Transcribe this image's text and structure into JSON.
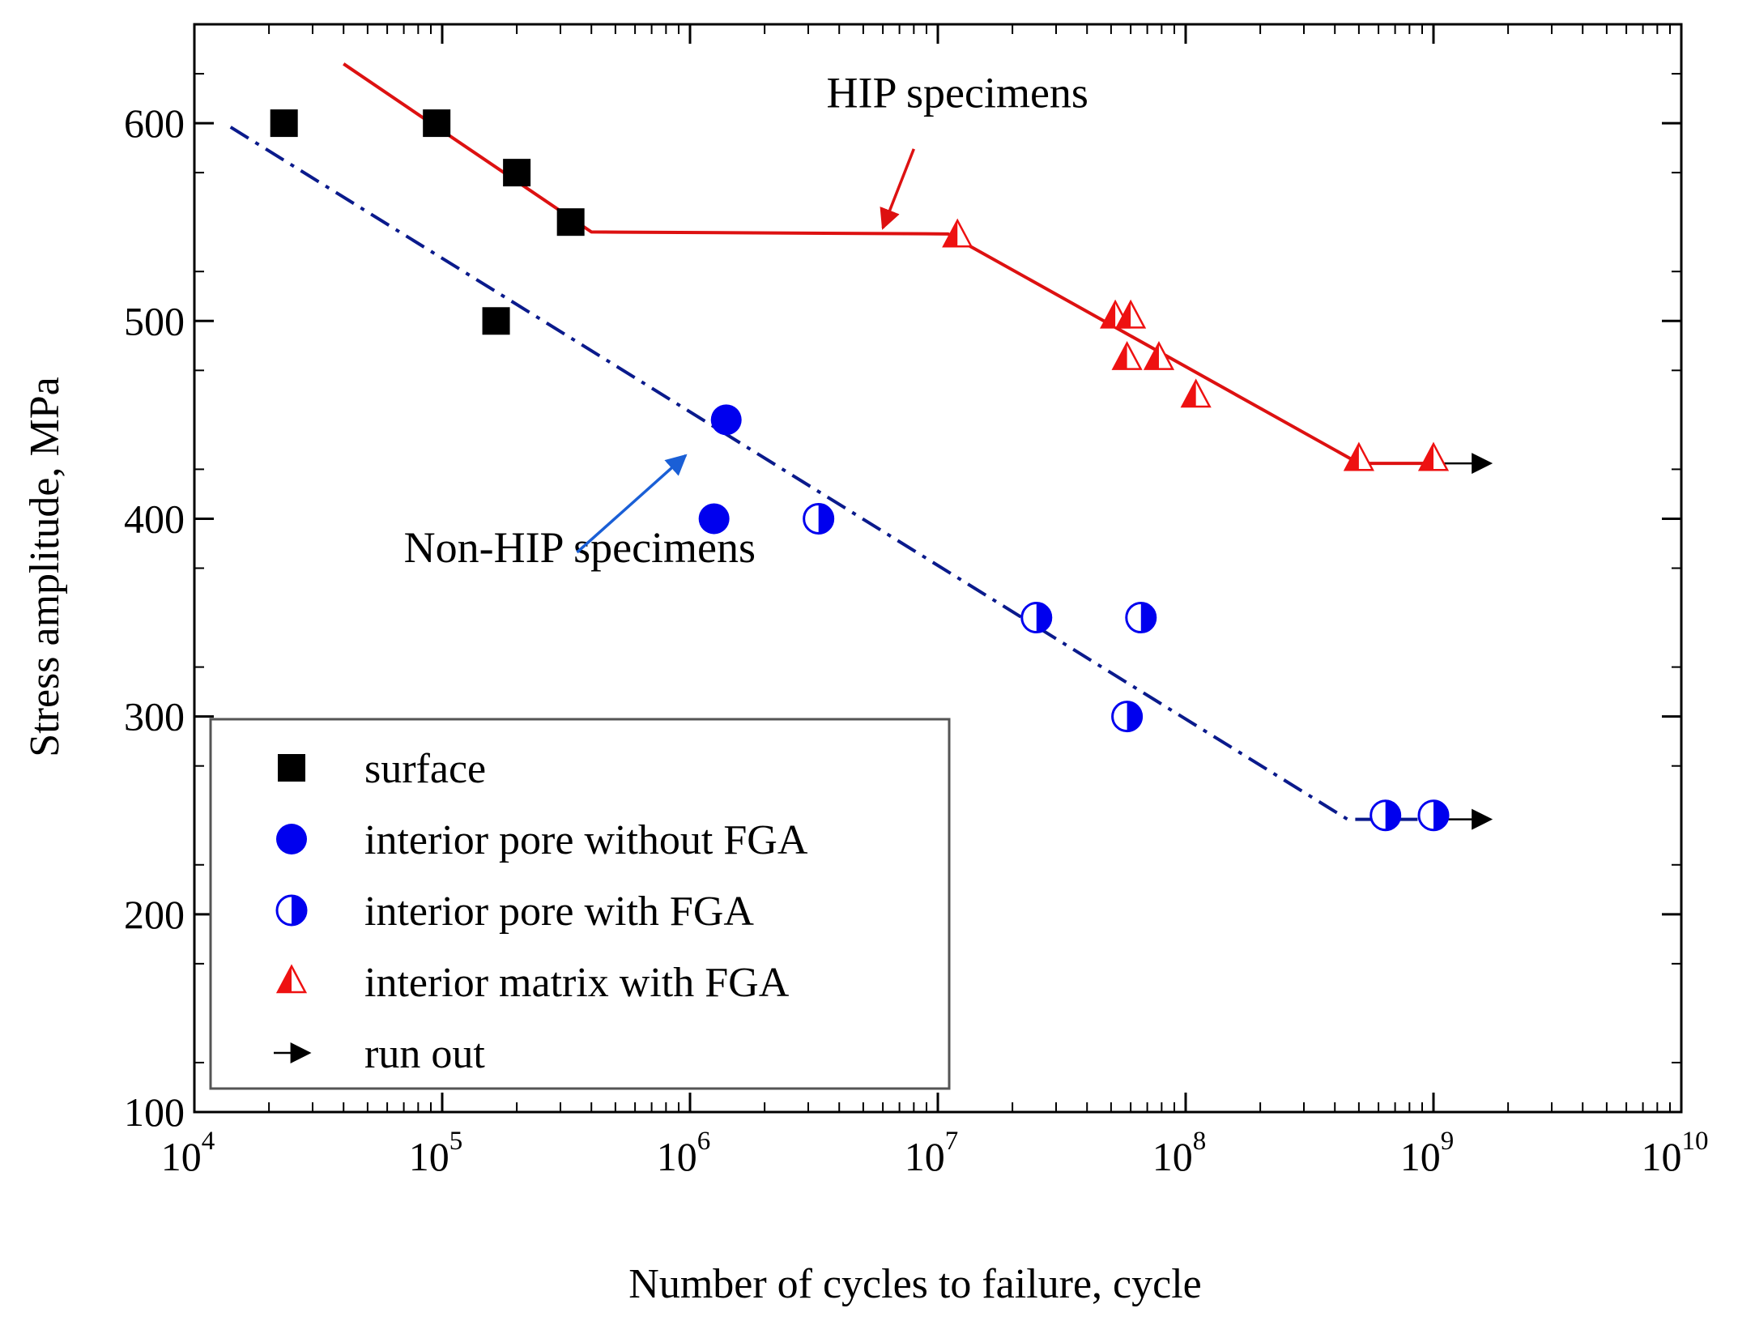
{
  "chart_data": {
    "type": "scatter",
    "title": "",
    "xlabel": "Number of cycles to failure, cycle",
    "ylabel": "Stress amplitude, MPa",
    "x_scale": "log",
    "xlim": [
      10000,
      10000000000
    ],
    "ylim": [
      100,
      650
    ],
    "x_ticks": [
      {
        "value": 10000,
        "base": "10",
        "exp": "4"
      },
      {
        "value": 100000,
        "base": "10",
        "exp": "5"
      },
      {
        "value": 1000000,
        "base": "10",
        "exp": "6"
      },
      {
        "value": 10000000,
        "base": "10",
        "exp": "7"
      },
      {
        "value": 100000000,
        "base": "10",
        "exp": "8"
      },
      {
        "value": 1000000000,
        "base": "10",
        "exp": "9"
      },
      {
        "value": 10000000000,
        "base": "10",
        "exp": "10"
      }
    ],
    "y_ticks": [
      {
        "value": 100,
        "label": "100"
      },
      {
        "value": 200,
        "label": "200"
      },
      {
        "value": 300,
        "label": "300"
      },
      {
        "value": 400,
        "label": "400"
      },
      {
        "value": 500,
        "label": "500"
      },
      {
        "value": 600,
        "label": "600"
      }
    ],
    "series": [
      {
        "name": "surface",
        "marker": "square",
        "color": "#000000",
        "points": [
          [
            23000,
            600
          ],
          [
            95000,
            600
          ],
          [
            200000,
            575
          ],
          [
            330000,
            550
          ],
          [
            165000,
            500
          ]
        ]
      },
      {
        "name": "interior pore without FGA",
        "marker": "circle",
        "color": "#0000ee",
        "points": [
          [
            1400000,
            450
          ],
          [
            1250000,
            400
          ]
        ]
      },
      {
        "name": "interior pore with FGA",
        "marker": "half-circle",
        "color": "#0000ee",
        "points": [
          [
            3300000,
            400
          ],
          [
            25000000,
            350
          ],
          [
            66000000,
            350
          ],
          [
            58000000,
            300
          ],
          [
            640000000,
            250
          ],
          [
            1000000000,
            250
          ]
        ]
      },
      {
        "name": "interior matrix with FGA",
        "marker": "half-triangle",
        "color": "#ee1111",
        "points": [
          [
            12000000,
            543
          ],
          [
            52000000,
            502
          ],
          [
            60000000,
            502
          ],
          [
            58000000,
            481
          ],
          [
            78000000,
            481
          ],
          [
            110000000,
            462
          ],
          [
            500000000,
            430
          ],
          [
            1000000000,
            430
          ]
        ]
      },
      {
        "name": "run out",
        "marker": "arrow",
        "color": "#000000",
        "points": []
      }
    ],
    "fit_lines": [
      {
        "name": "HIP specimens",
        "color": "#dd1111",
        "style": "solid",
        "points": [
          [
            40000,
            630
          ],
          [
            400000,
            545
          ],
          [
            11000000,
            544
          ],
          [
            500000000,
            428
          ],
          [
            1000000000,
            428
          ]
        ]
      },
      {
        "name": "Non-HIP specimens",
        "color": "#0a1a8c",
        "style": "dashdot",
        "points": [
          [
            14000,
            598
          ],
          [
            450000000,
            248
          ],
          [
            1000000000,
            248
          ]
        ]
      }
    ],
    "runout_arrows": [
      {
        "color": "#000000",
        "from": [
          1050000000,
          428
        ],
        "to": [
          1700000000,
          428
        ]
      },
      {
        "color": "#000000",
        "from": [
          1050000000,
          248
        ],
        "to": [
          1700000000,
          248
        ]
      }
    ],
    "annotations": [
      {
        "text": "HIP specimens",
        "color": "#dd1111",
        "anchor": [
          12000000,
          608
        ],
        "arrow_from": [
          8000000,
          587
        ],
        "arrow_to": [
          6000000,
          547
        ]
      },
      {
        "text": "Non-HIP specimens",
        "color": "#1a5fd6",
        "anchor": [
          70000,
          378
        ],
        "arrow_from": [
          350000,
          383
        ],
        "arrow_to": [
          960000,
          432
        ]
      }
    ],
    "legend": {
      "position": "bottom-left",
      "entries": [
        {
          "label": "surface",
          "marker": "square",
          "color": "#000000"
        },
        {
          "label": "interior pore without FGA",
          "marker": "circle",
          "color": "#0000ee"
        },
        {
          "label": "interior pore with FGA",
          "marker": "half-circle",
          "color": "#0000ee"
        },
        {
          "label": "interior matrix with FGA",
          "marker": "half-triangle",
          "color": "#ee1111"
        },
        {
          "label": "run out",
          "marker": "arrow",
          "color": "#000000"
        }
      ]
    }
  }
}
